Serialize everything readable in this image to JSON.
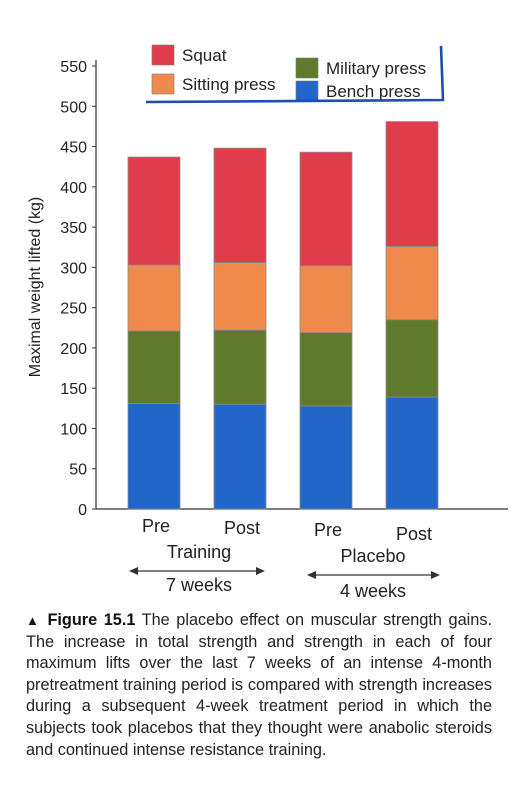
{
  "colors": {
    "squat": "#df3d4c",
    "sitting_press": "#ef8a4c",
    "military_press": "#5f7a2c",
    "bench_press": "#2166c8",
    "legend_border": "#1a4fb0",
    "axis": "#333333",
    "text": "#222222"
  },
  "chart_data": {
    "type": "bar",
    "stacked": true,
    "ylabel": "Maximal weight lifted (kg)",
    "xlabel": "",
    "ylim": [
      0,
      550
    ],
    "yticks": [
      0,
      50,
      100,
      150,
      200,
      250,
      300,
      350,
      400,
      450,
      500,
      550
    ],
    "categories": [
      "Pre",
      "Post",
      "Pre",
      "Post"
    ],
    "groups": [
      {
        "label": "Training",
        "duration": "7 weeks",
        "categories": [
          0,
          1
        ]
      },
      {
        "label": "Placebo",
        "duration": "4 weeks",
        "categories": [
          2,
          3
        ]
      }
    ],
    "series": [
      {
        "name": "Bench press",
        "color_key": "bench_press",
        "values": [
          131,
          130,
          128,
          139
        ]
      },
      {
        "name": "Military press",
        "color_key": "military_press",
        "values": [
          90,
          92,
          91,
          96
        ]
      },
      {
        "name": "Sitting press",
        "color_key": "sitting_press",
        "values": [
          82,
          84,
          83,
          91
        ]
      },
      {
        "name": "Squat",
        "color_key": "squat",
        "values": [
          134,
          142,
          141,
          155
        ]
      }
    ],
    "legend": {
      "placement": "top-right",
      "entries": [
        {
          "label": "Squat",
          "color_key": "squat"
        },
        {
          "label": "Military press",
          "color_key": "military_press"
        },
        {
          "label": "Sitting press",
          "color_key": "sitting_press"
        },
        {
          "label": "Bench press",
          "color_key": "bench_press"
        }
      ]
    },
    "grid": false
  },
  "caption": {
    "figure_label": "Figure 15.1",
    "text": "The placebo effect on muscular strength gains. The increase in total strength and strength in each of four maximum lifts over the last 7 weeks of an intense 4-month pretreatment training period is compared with strength increases during a subsequent 4-week treatment period in which the subjects took placebos that they thought were anabolic steroids and continued intense resistance training."
  }
}
